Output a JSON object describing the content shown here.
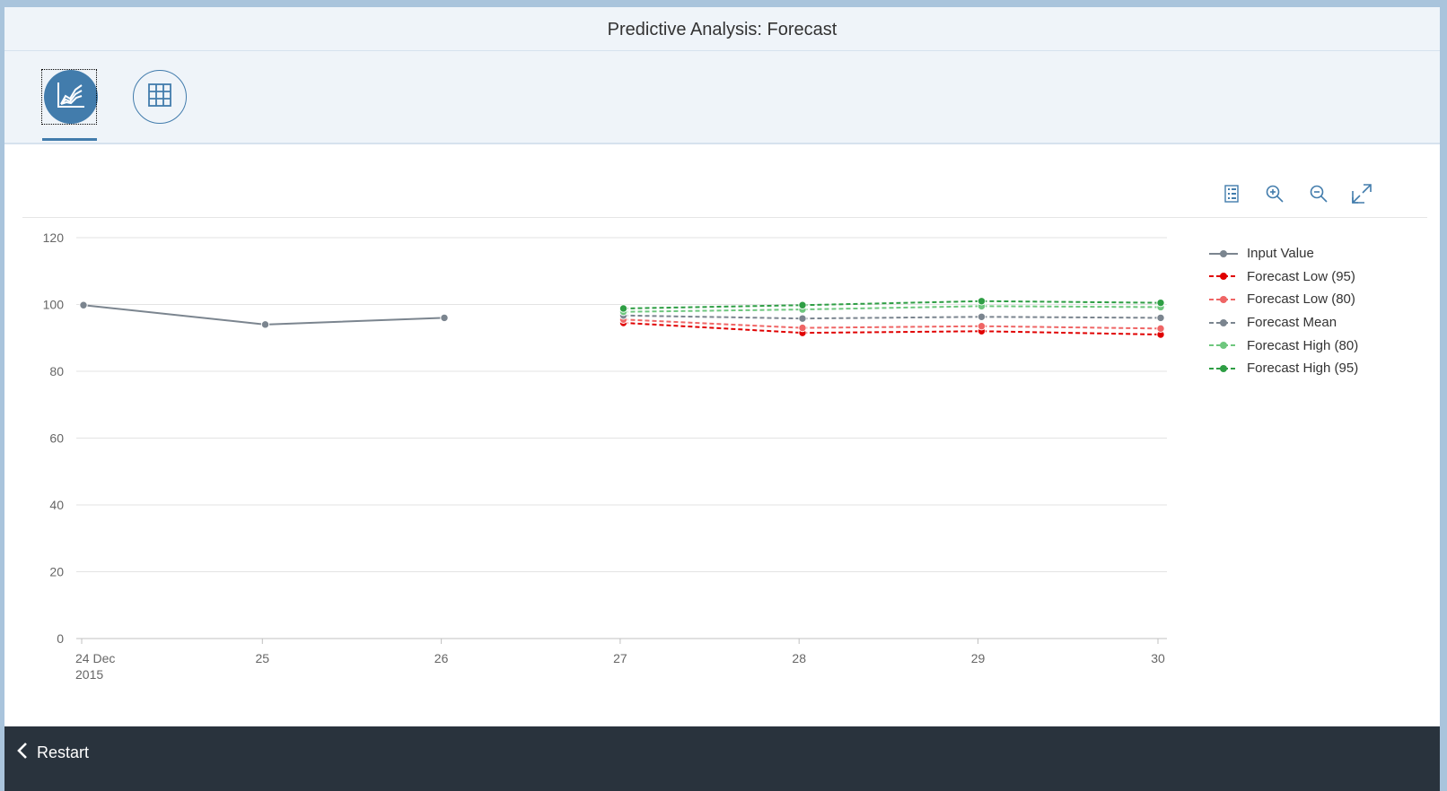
{
  "window": {
    "title": "Predictive Analysis: Forecast"
  },
  "tabs": [
    {
      "name": "chart-view",
      "icon": "line-chart-icon",
      "selected": true
    },
    {
      "name": "table-view",
      "icon": "grid-table-icon",
      "selected": false
    }
  ],
  "chart_toolbar": {
    "icons": [
      "legend-toggle-icon",
      "zoom-in-icon",
      "zoom-out-icon",
      "fullscreen-icon"
    ]
  },
  "footer": {
    "restart_label": "Restart",
    "icon": "chevron-left-icon"
  },
  "colors": {
    "accent": "#427cac",
    "footer_bg": "#29333d",
    "header_bg": "#eff4f9"
  },
  "chart_data": {
    "type": "line",
    "title": "",
    "xlabel": "",
    "ylabel": "",
    "x_tick_labels": [
      "24 Dec",
      "25",
      "26",
      "27",
      "28",
      "29",
      "30"
    ],
    "x_tick_sublabel": "2015",
    "ylim": [
      0,
      120
    ],
    "y_ticks": [
      0,
      20,
      40,
      60,
      80,
      100,
      120
    ],
    "grid": true,
    "legend_position": "right",
    "series": [
      {
        "name": "Input Value",
        "color": "#7b858f",
        "dashed": false,
        "x": [
          "2015-12-24",
          "2015-12-25",
          "2015-12-26"
        ],
        "values": [
          99.8,
          94,
          96
        ]
      },
      {
        "name": "Forecast Low (95)",
        "color": "#e00000",
        "dashed": true,
        "x": [
          "2015-12-27",
          "2015-12-28",
          "2015-12-29",
          "2015-12-30"
        ],
        "values": [
          94.5,
          91.5,
          92,
          91
        ]
      },
      {
        "name": "Forecast Low (80)",
        "color": "#ef6565",
        "dashed": true,
        "x": [
          "2015-12-27",
          "2015-12-28",
          "2015-12-29",
          "2015-12-30"
        ],
        "values": [
          95.5,
          93,
          93.5,
          92.8
        ]
      },
      {
        "name": "Forecast Mean",
        "color": "#7b858f",
        "dashed": true,
        "x": [
          "2015-12-27",
          "2015-12-28",
          "2015-12-29",
          "2015-12-30"
        ],
        "values": [
          96.7,
          95.8,
          96.3,
          96
        ]
      },
      {
        "name": "Forecast High (80)",
        "color": "#6ec77e",
        "dashed": true,
        "x": [
          "2015-12-27",
          "2015-12-28",
          "2015-12-29",
          "2015-12-30"
        ],
        "values": [
          97.8,
          98.5,
          99.5,
          99.2
        ]
      },
      {
        "name": "Forecast High (95)",
        "color": "#2e9e44",
        "dashed": true,
        "x": [
          "2015-12-27",
          "2015-12-28",
          "2015-12-29",
          "2015-12-30"
        ],
        "values": [
          98.8,
          99.8,
          101,
          100.5
        ]
      }
    ]
  }
}
